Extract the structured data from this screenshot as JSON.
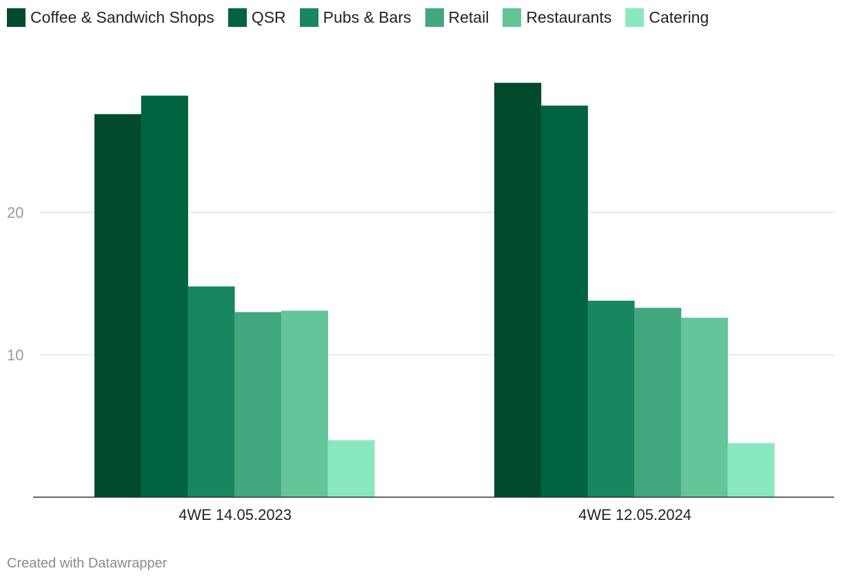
{
  "chart_data": {
    "type": "bar",
    "categories": [
      "4WE 14.05.2023",
      "4WE 12.05.2024"
    ],
    "series": [
      {
        "name": "Coffee & Sandwich Shops",
        "color": "#014a2c",
        "values": [
          26.9,
          29.1
        ]
      },
      {
        "name": "QSR",
        "color": "#006441",
        "values": [
          28.2,
          27.5
        ]
      },
      {
        "name": "Pubs & Bars",
        "color": "#18875f",
        "values": [
          14.8,
          13.8
        ]
      },
      {
        "name": "Retail",
        "color": "#42a77e",
        "values": [
          13.0,
          13.3
        ]
      },
      {
        "name": "Restaurants",
        "color": "#63c599",
        "values": [
          13.1,
          12.6
        ]
      },
      {
        "name": "Catering",
        "color": "#8ae8bf",
        "values": [
          4.0,
          3.8
        ]
      }
    ],
    "ylim": [
      0,
      30
    ],
    "yticks": [
      10,
      20
    ],
    "grid": true,
    "legend": "top-left"
  },
  "footer": {
    "credit": "Created with Datawrapper"
  }
}
